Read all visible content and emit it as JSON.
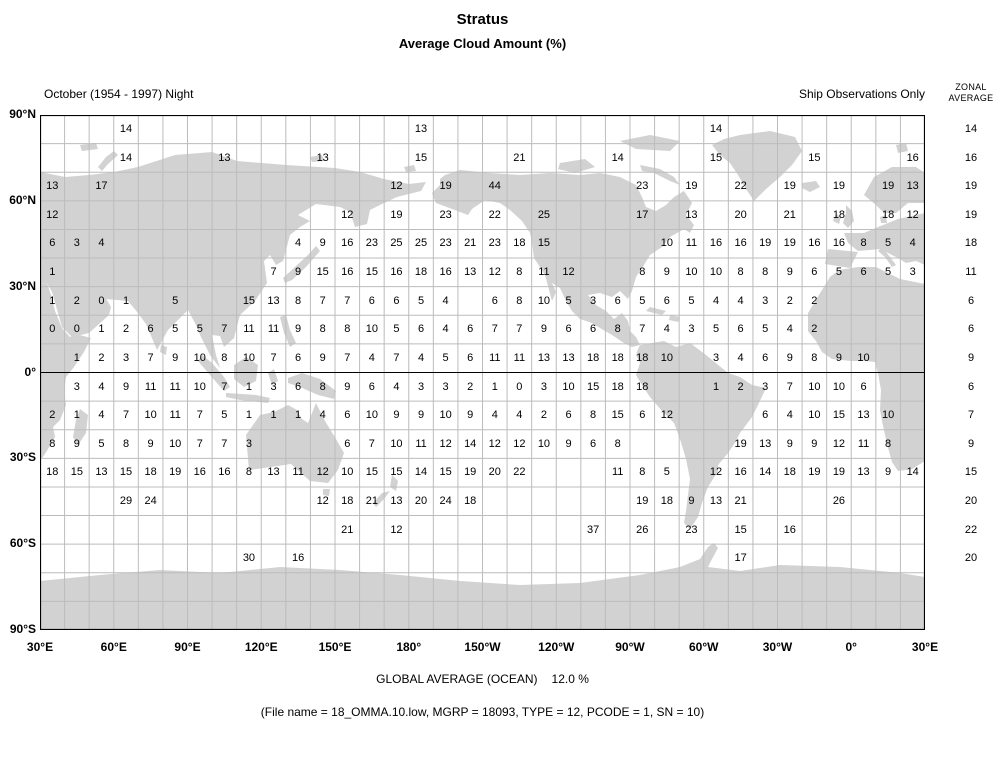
{
  "title": "Stratus",
  "subtitle": "Average Cloud Amount (%)",
  "header_left": "October (1954 - 1997) Night",
  "header_right": "Ship Observations Only",
  "zonal_header": {
    "line1": "ZONAL",
    "line2": "AVERAGE"
  },
  "footer_global": {
    "label": "GLOBAL AVERAGE (OCEAN)",
    "value": "12.0 %"
  },
  "footer_file": "(File name = 18_OMMA.10.low, MGRP = 18093, TYPE = 12, PCODE = 1, SN = 10)",
  "colors": {
    "land": "#d2d2d2",
    "grid_line": "#bcbcbc",
    "axis_line": "#000000"
  },
  "chart_data": {
    "type": "heatmap",
    "title": "Stratus - Average Cloud Amount (%)",
    "subtitle": "October (1954 - 1997) Night, Ship Observations Only",
    "lat_ticks": [
      "90°N",
      "60°N",
      "30°N",
      "0°",
      "30°S",
      "60°S",
      "90°S"
    ],
    "lon_ticks": [
      "30°E",
      "60°E",
      "90°E",
      "120°E",
      "150°E",
      "180°",
      "150°W",
      "120°W",
      "90°W",
      "60°W",
      "30°W",
      "0°",
      "30°E"
    ],
    "grid": {
      "cols": 36,
      "rows": 18,
      "cell_deg": 10,
      "lon_start": "30°E",
      "lat_start": "90°N"
    },
    "global_average_ocean_pct": 12.0,
    "zonal_averages": [
      14,
      16,
      19,
      19,
      18,
      11,
      6,
      6,
      9,
      6,
      7,
      9,
      15,
      20,
      22,
      20,
      null,
      null
    ],
    "rows": [
      [
        null,
        null,
        null,
        14,
        null,
        null,
        null,
        null,
        null,
        null,
        null,
        null,
        null,
        null,
        null,
        13,
        null,
        null,
        null,
        null,
        null,
        null,
        null,
        null,
        null,
        null,
        null,
        14,
        null,
        null,
        null,
        null,
        null,
        null,
        null,
        null
      ],
      [
        null,
        null,
        null,
        14,
        null,
        null,
        null,
        13,
        null,
        null,
        null,
        13,
        null,
        null,
        null,
        15,
        null,
        null,
        null,
        21,
        null,
        null,
        null,
        14,
        null,
        null,
        null,
        15,
        null,
        null,
        null,
        15,
        null,
        null,
        null,
        16
      ],
      [
        13,
        null,
        17,
        null,
        null,
        null,
        null,
        null,
        null,
        null,
        null,
        null,
        null,
        null,
        12,
        null,
        19,
        null,
        44,
        null,
        null,
        null,
        null,
        null,
        23,
        null,
        19,
        null,
        22,
        null,
        19,
        null,
        19,
        null,
        19,
        13
      ],
      [
        12,
        null,
        null,
        null,
        null,
        null,
        null,
        null,
        null,
        null,
        null,
        null,
        12,
        null,
        19,
        null,
        23,
        null,
        22,
        null,
        25,
        null,
        null,
        null,
        17,
        null,
        13,
        null,
        20,
        null,
        21,
        null,
        18,
        null,
        18,
        12
      ],
      [
        6,
        3,
        4,
        null,
        null,
        null,
        null,
        null,
        null,
        null,
        4,
        9,
        16,
        23,
        25,
        25,
        23,
        21,
        23,
        18,
        15,
        null,
        null,
        null,
        null,
        10,
        11,
        16,
        16,
        19,
        19,
        16,
        16,
        8,
        5,
        4
      ],
      [
        1,
        null,
        null,
        null,
        null,
        null,
        null,
        null,
        null,
        7,
        9,
        15,
        16,
        15,
        16,
        18,
        16,
        13,
        12,
        8,
        11,
        12,
        null,
        null,
        8,
        9,
        10,
        10,
        8,
        8,
        9,
        6,
        5,
        6,
        5,
        3
      ],
      [
        1,
        2,
        0,
        1,
        null,
        5,
        null,
        null,
        15,
        13,
        8,
        7,
        7,
        6,
        6,
        5,
        4,
        null,
        6,
        8,
        10,
        5,
        3,
        6,
        5,
        6,
        5,
        4,
        4,
        3,
        2,
        2,
        null,
        null,
        null,
        null
      ],
      [
        0,
        0,
        1,
        2,
        6,
        5,
        5,
        7,
        11,
        11,
        9,
        8,
        8,
        10,
        5,
        6,
        4,
        6,
        7,
        7,
        9,
        6,
        6,
        8,
        7,
        4,
        3,
        5,
        6,
        5,
        4,
        2,
        null,
        null,
        null,
        null
      ],
      [
        null,
        1,
        2,
        3,
        7,
        9,
        10,
        8,
        10,
        7,
        6,
        9,
        7,
        4,
        7,
        4,
        5,
        6,
        11,
        11,
        13,
        13,
        18,
        18,
        18,
        10,
        null,
        3,
        4,
        6,
        9,
        8,
        9,
        10,
        null,
        null
      ],
      [
        null,
        3,
        4,
        9,
        11,
        11,
        10,
        7,
        1,
        3,
        6,
        8,
        9,
        6,
        4,
        3,
        3,
        2,
        1,
        0,
        3,
        10,
        15,
        18,
        18,
        null,
        null,
        1,
        2,
        3,
        7,
        10,
        10,
        6,
        null,
        null
      ],
      [
        2,
        1,
        4,
        7,
        10,
        11,
        7,
        5,
        1,
        1,
        1,
        4,
        6,
        10,
        9,
        9,
        10,
        9,
        4,
        4,
        2,
        6,
        8,
        15,
        6,
        12,
        null,
        null,
        null,
        6,
        4,
        10,
        15,
        13,
        10,
        null
      ],
      [
        8,
        9,
        5,
        8,
        9,
        10,
        7,
        7,
        3,
        null,
        null,
        null,
        6,
        7,
        10,
        11,
        12,
        14,
        12,
        12,
        10,
        9,
        6,
        8,
        null,
        null,
        null,
        null,
        19,
        13,
        9,
        9,
        12,
        11,
        8,
        null
      ],
      [
        18,
        15,
        13,
        15,
        18,
        19,
        16,
        16,
        8,
        13,
        11,
        12,
        10,
        15,
        15,
        14,
        15,
        19,
        20,
        22,
        null,
        null,
        null,
        11,
        8,
        5,
        null,
        12,
        16,
        14,
        18,
        19,
        19,
        13,
        9,
        14
      ],
      [
        null,
        null,
        null,
        29,
        24,
        null,
        null,
        null,
        null,
        null,
        null,
        12,
        18,
        21,
        13,
        20,
        24,
        18,
        null,
        null,
        null,
        null,
        null,
        null,
        19,
        18,
        9,
        13,
        21,
        null,
        null,
        null,
        26,
        null,
        null,
        null
      ],
      [
        null,
        null,
        null,
        null,
        null,
        null,
        null,
        null,
        null,
        null,
        null,
        null,
        21,
        null,
        12,
        null,
        null,
        null,
        null,
        null,
        null,
        null,
        37,
        null,
        26,
        null,
        23,
        null,
        15,
        null,
        16,
        null,
        null,
        null,
        null,
        null
      ],
      [
        null,
        null,
        null,
        null,
        null,
        null,
        null,
        null,
        30,
        null,
        16,
        null,
        null,
        null,
        null,
        null,
        null,
        null,
        null,
        null,
        null,
        null,
        null,
        null,
        null,
        null,
        null,
        null,
        17,
        null,
        null,
        null,
        null,
        null,
        null,
        null
      ],
      [
        null,
        null,
        null,
        null,
        null,
        null,
        null,
        null,
        null,
        null,
        null,
        null,
        null,
        null,
        null,
        null,
        null,
        null,
        null,
        null,
        null,
        null,
        null,
        null,
        null,
        null,
        null,
        null,
        null,
        null,
        null,
        null,
        null,
        null,
        null,
        null
      ],
      [
        null,
        null,
        null,
        null,
        null,
        null,
        null,
        null,
        null,
        null,
        null,
        null,
        null,
        null,
        null,
        null,
        null,
        null,
        null,
        null,
        null,
        null,
        null,
        null,
        null,
        null,
        null,
        null,
        null,
        null,
        null,
        null,
        null,
        null,
        null,
        null
      ]
    ]
  }
}
